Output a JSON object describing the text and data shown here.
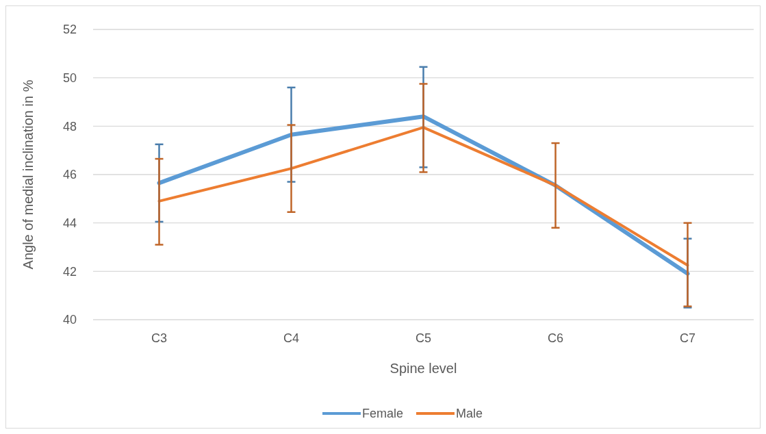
{
  "chart_data": {
    "type": "line",
    "xlabel": "Spine level",
    "ylabel": "Angle of medial inclination in %",
    "categories": [
      "C3",
      "C4",
      "C5",
      "C6",
      "C7"
    ],
    "ylim": [
      40,
      52
    ],
    "yticks": [
      40,
      42,
      44,
      46,
      48,
      50,
      52
    ],
    "grid": "y",
    "legend": "bottom",
    "marker": "none",
    "line_style": "solid",
    "series": [
      {
        "name": "Female",
        "color": "#5b9bd5",
        "values": [
          45.65,
          47.65,
          48.4,
          45.55,
          41.9
        ],
        "errors": [
          [
            44.05,
            47.25
          ],
          [
            45.7,
            49.6
          ],
          [
            46.3,
            50.45
          ],
          null,
          [
            40.5,
            43.35
          ]
        ]
      },
      {
        "name": "Male",
        "color": "#ed7d31",
        "values": [
          44.9,
          46.25,
          47.95,
          45.55,
          42.25
        ],
        "errors": [
          [
            43.1,
            46.65
          ],
          [
            44.45,
            48.05
          ],
          [
            46.1,
            49.75
          ],
          [
            43.8,
            47.3
          ],
          [
            40.55,
            44.0
          ]
        ]
      }
    ]
  }
}
